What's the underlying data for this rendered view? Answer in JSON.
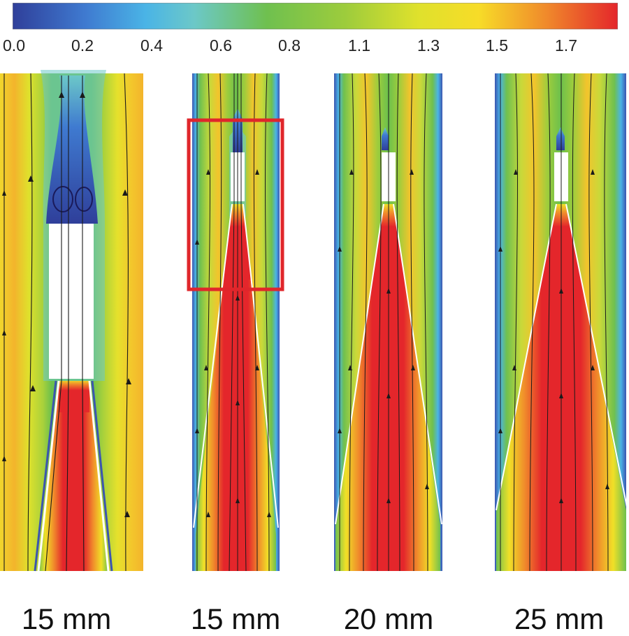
{
  "colorbar": {
    "tick_labels": [
      "0.0",
      "0.2",
      "0.4",
      "0.6",
      "0.8",
      "1.1",
      "1.3",
      "1.5",
      "1.7"
    ],
    "colormap": [
      "#3b4fa3",
      "#3b9be0",
      "#6cc6cf",
      "#7cc34f",
      "#bcd63a",
      "#f0e627",
      "#f5b42c",
      "#ee7a2a",
      "#e5262b"
    ]
  },
  "panels": [
    {
      "caption": "15 mm"
    },
    {
      "caption": "15 mm"
    },
    {
      "caption": "20 mm"
    },
    {
      "caption": "25 mm"
    }
  ],
  "highlight_color": "#e0262b"
}
